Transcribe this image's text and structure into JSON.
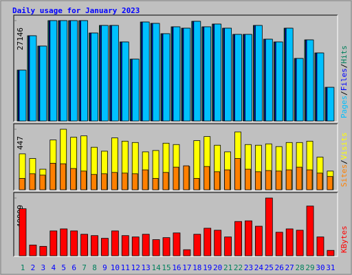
{
  "chart_data": [
    {
      "type": "bar",
      "title": "Daily usage for January 2023",
      "ylim": [
        0,
        27146
      ],
      "yticks": [
        27146
      ],
      "legend_separator": "/",
      "series": [
        {
          "name": "Hits",
          "color": "#00805c",
          "values": [
            13759,
            23056,
            20267,
            27146,
            27146,
            27146,
            27146,
            23799,
            25845,
            25845,
            21382,
            16734,
            26774,
            26403,
            23614,
            25473,
            25101,
            26960,
            25473,
            26217,
            25101,
            23428,
            23428,
            25845,
            22126,
            21382,
            25101,
            16920,
            21940,
            18407,
            9111
          ]
        },
        {
          "name": "Files",
          "color": "#0000ff",
          "values": [
            13759,
            23056,
            20267,
            27146,
            27146,
            27146,
            27146,
            23799,
            25845,
            25845,
            21382,
            16734,
            26774,
            26403,
            23614,
            25473,
            25101,
            26960,
            25473,
            26217,
            25101,
            23428,
            23428,
            25845,
            22126,
            21382,
            25101,
            16920,
            21940,
            18407,
            9111
          ]
        },
        {
          "name": "Pages",
          "color": "#00c0ff",
          "values": [
            13759,
            23056,
            20267,
            27146,
            27146,
            27146,
            27146,
            23799,
            25845,
            25845,
            21382,
            16734,
            26774,
            26403,
            23614,
            25473,
            25101,
            26960,
            25473,
            26217,
            25101,
            23428,
            23428,
            25845,
            22126,
            21382,
            25101,
            16920,
            21940,
            18407,
            9111
          ]
        }
      ]
    },
    {
      "type": "bar",
      "ylim": [
        0,
        447
      ],
      "yticks": [
        447
      ],
      "legend_separator": "/",
      "series": [
        {
          "name": "Visits",
          "color": "#ffff00",
          "values": [
            265,
            231,
            152,
            368,
            447,
            388,
            398,
            314,
            285,
            383,
            359,
            349,
            280,
            290,
            344,
            334,
            172,
            363,
            393,
            329,
            280,
            427,
            334,
            329,
            339,
            319,
            349,
            349,
            359,
            241,
            138
          ]
        },
        {
          "name": "Sites",
          "color": "#ff8000",
          "values": [
            84,
            118,
            108,
            196,
            192,
            157,
            138,
            113,
            118,
            128,
            123,
            118,
            147,
            84,
            128,
            167,
            177,
            84,
            172,
            133,
            147,
            231,
            152,
            133,
            142,
            138,
            147,
            167,
            147,
            123,
            98
          ]
        }
      ]
    },
    {
      "type": "bar",
      "ylim": [
        0,
        40909
      ],
      "yticks": [
        40909
      ],
      "categories": [
        "1",
        "2",
        "3",
        "4",
        "5",
        "6",
        "7",
        "8",
        "9",
        "10",
        "11",
        "12",
        "13",
        "14",
        "15",
        "16",
        "17",
        "18",
        "19",
        "20",
        "21",
        "22",
        "23",
        "24",
        "25",
        "26",
        "27",
        "28",
        "29",
        "30",
        "31"
      ],
      "category_colors": [
        "#00805c",
        "#0000ff",
        "#0000ff",
        "#0000ff",
        "#0000ff",
        "#0000ff",
        "#00805c",
        "#00805c",
        "#0000ff",
        "#0000ff",
        "#0000ff",
        "#0000ff",
        "#0000ff",
        "#00805c",
        "#00805c",
        "#0000ff",
        "#0000ff",
        "#0000ff",
        "#0000ff",
        "#0000ff",
        "#00805c",
        "#00805c",
        "#0000ff",
        "#0000ff",
        "#0000ff",
        "#0000ff",
        "#0000ff",
        "#00805c",
        "#00805c",
        "#0000ff",
        "#0000ff"
      ],
      "series": [
        {
          "name": "KBytes",
          "color": "#ff0000",
          "values": [
            33298,
            7611,
            6660,
            17600,
            19028,
            17600,
            15222,
            14271,
            12368,
            17600,
            14271,
            13320,
            15222,
            11417,
            12844,
            16174,
            4281,
            15222,
            19504,
            18077,
            13320,
            24261,
            24737,
            20931,
            40909,
            16650,
            19028,
            18077,
            35202,
            13320,
            3806
          ]
        }
      ]
    }
  ]
}
